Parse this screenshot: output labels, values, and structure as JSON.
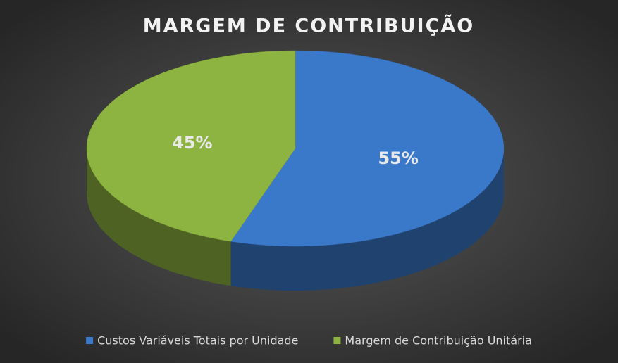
{
  "chart_data": {
    "type": "pie",
    "title": "MARGEM DE CONTRIBUIÇÃO",
    "categories": [
      "Custos Variáveis Totais por Unidade",
      "Margem de Contribuição Unitária"
    ],
    "values": [
      55,
      45
    ],
    "value_labels": [
      "55%",
      "45%"
    ],
    "colors": [
      "#3a78c9",
      "#8db340"
    ],
    "legend": "bottom"
  }
}
